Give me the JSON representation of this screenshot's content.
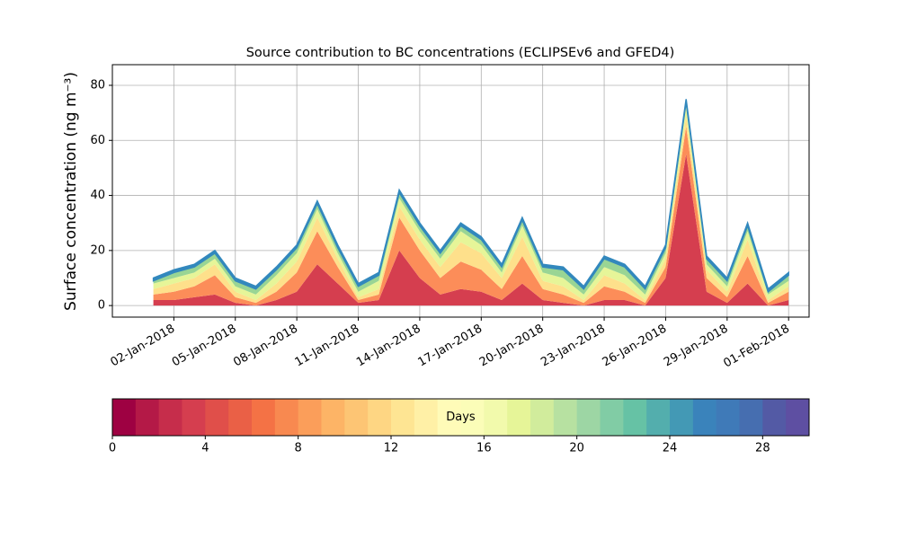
{
  "chart_data": {
    "type": "stacked_area",
    "title": "Source contribution to BC concentrations (ECLIPSEv6 and GFED4)",
    "y_label": "Surface concentration (ng m⁻³)",
    "x": [
      "2018-01-01",
      "2018-01-02",
      "2018-01-03",
      "2018-01-04",
      "2018-01-05",
      "2018-01-06",
      "2018-01-07",
      "2018-01-08",
      "2018-01-09",
      "2018-01-10",
      "2018-01-11",
      "2018-01-12",
      "2018-01-13",
      "2018-01-14",
      "2018-01-15",
      "2018-01-16",
      "2018-01-17",
      "2018-01-18",
      "2018-01-19",
      "2018-01-20",
      "2018-01-21",
      "2018-01-22",
      "2018-01-23",
      "2018-01-24",
      "2018-01-25",
      "2018-01-26",
      "2018-01-27",
      "2018-01-28",
      "2018-01-29",
      "2018-01-30",
      "2018-01-31",
      "2018-02-01"
    ],
    "series": [
      {
        "color": "#d53e4f",
        "values": [
          2,
          2,
          3,
          4,
          1,
          0,
          2,
          5,
          15,
          8,
          1,
          2,
          20,
          10,
          4,
          6,
          5,
          2,
          8,
          2,
          1,
          0,
          2,
          2,
          0,
          10,
          55,
          5,
          1,
          8,
          0,
          2
        ]
      },
      {
        "color": "#fc8d59",
        "values": [
          2,
          3,
          4,
          7,
          2,
          1,
          3,
          7,
          12,
          6,
          1,
          2,
          12,
          10,
          6,
          10,
          8,
          4,
          10,
          4,
          3,
          1,
          5,
          3,
          1,
          4,
          10,
          5,
          2,
          10,
          1,
          3
        ]
      },
      {
        "color": "#fee08b",
        "values": [
          2,
          3,
          3,
          4,
          2,
          1,
          3,
          4,
          5,
          3,
          1,
          2,
          4,
          4,
          4,
          7,
          6,
          4,
          7,
          3,
          3,
          1,
          4,
          3,
          1,
          3,
          4,
          3,
          2,
          6,
          1,
          2
        ]
      },
      {
        "color": "#e6f598",
        "values": [
          2,
          2,
          2,
          2,
          2,
          2,
          3,
          3,
          3,
          2,
          2,
          3,
          3,
          3,
          3,
          4,
          3,
          2,
          4,
          3,
          3,
          2,
          3,
          3,
          2,
          2,
          3,
          2,
          2,
          3,
          2,
          2
        ]
      },
      {
        "color": "#99d594",
        "values": [
          1,
          2,
          2,
          2,
          2,
          2,
          2,
          2,
          2,
          2,
          2,
          2,
          2,
          2,
          2,
          2,
          2,
          2,
          2,
          2,
          3,
          2,
          3,
          3,
          2,
          2,
          2,
          2,
          2,
          2,
          1,
          2
        ]
      },
      {
        "color": "#3288bd",
        "values": [
          1,
          1,
          1,
          1,
          1,
          1,
          1,
          1,
          1,
          1,
          1,
          1,
          1,
          1,
          1,
          1,
          1,
          1,
          1,
          1,
          1,
          1,
          1,
          1,
          1,
          1,
          1,
          1,
          1,
          1,
          1,
          1
        ]
      }
    ],
    "xlim": [
      "2017-12-30",
      "2018-02-02"
    ],
    "xticks": [
      {
        "value": "2018-01-02",
        "label": "02-Jan-2018"
      },
      {
        "value": "2018-01-05",
        "label": "05-Jan-2018"
      },
      {
        "value": "2018-01-08",
        "label": "08-Jan-2018"
      },
      {
        "value": "2018-01-11",
        "label": "11-Jan-2018"
      },
      {
        "value": "2018-01-14",
        "label": "14-Jan-2018"
      },
      {
        "value": "2018-01-17",
        "label": "17-Jan-2018"
      },
      {
        "value": "2018-01-20",
        "label": "20-Jan-2018"
      },
      {
        "value": "2018-01-23",
        "label": "23-Jan-2018"
      },
      {
        "value": "2018-01-26",
        "label": "26-Jan-2018"
      },
      {
        "value": "2018-01-29",
        "label": "29-Jan-2018"
      },
      {
        "value": "2018-02-01",
        "label": "01-Feb-2018"
      }
    ],
    "ylim": [
      -4.2,
      87.5
    ],
    "yticks": [
      0,
      20,
      40,
      60,
      80
    ],
    "grid": true,
    "colorbar": {
      "label": "Days",
      "lim": [
        0,
        30
      ],
      "ticks": [
        0,
        4,
        8,
        12,
        16,
        20,
        24,
        28
      ],
      "colors": [
        "#9e0142",
        "#b41947",
        "#c62d4b",
        "#d53e4f",
        "#e04f4a",
        "#ea6046",
        "#f47245",
        "#f88950",
        "#fb9e5a",
        "#fdb466",
        "#fdc574",
        "#fed683",
        "#fee593",
        "#fff0a6",
        "#fffbb8",
        "#fbfdb8",
        "#f2faac",
        "#e6f598",
        "#d1ec9c",
        "#b7e1a1",
        "#9dd6a4",
        "#81cca5",
        "#66c2a5",
        "#53aead",
        "#4399b5",
        "#3a83bb",
        "#3f7ab8",
        "#466eb0",
        "#535aa5",
        "#5e4fa2"
      ]
    }
  }
}
